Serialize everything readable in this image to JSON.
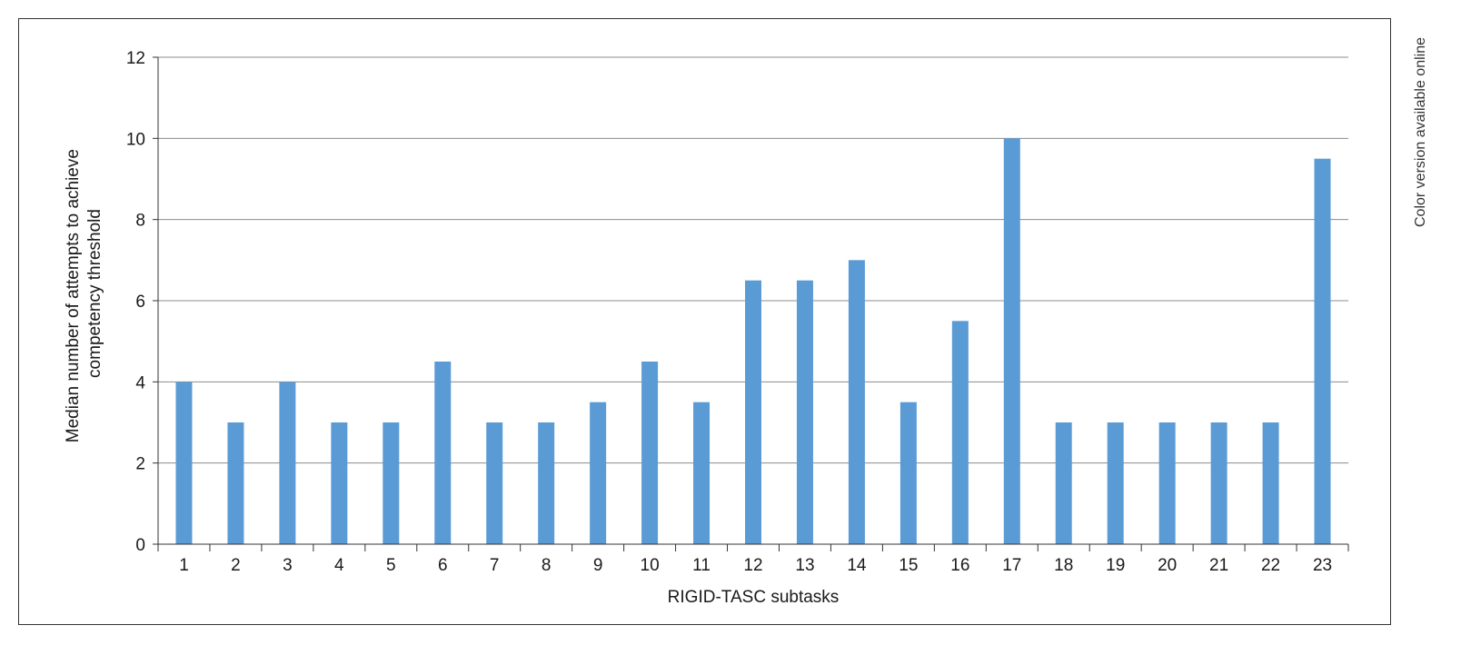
{
  "side_note": "Color version available online",
  "colors": {
    "bar": "#5b9bd5",
    "grid": "#8c8c8c",
    "axis": "#333333",
    "text": "#1a1a1a"
  },
  "chart_data": {
    "type": "bar",
    "title": "",
    "xlabel": "RIGID-TASC subtasks",
    "ylabel": [
      "Median number of attempts to achieve",
      "competency threshold"
    ],
    "ylim": [
      0,
      12
    ],
    "yticks": [
      "0",
      "2",
      "4",
      "6",
      "8",
      "10",
      "12"
    ],
    "grid": true,
    "legend": "none",
    "categories": [
      "1",
      "2",
      "3",
      "4",
      "5",
      "6",
      "7",
      "8",
      "9",
      "10",
      "11",
      "12",
      "13",
      "14",
      "15",
      "16",
      "17",
      "18",
      "19",
      "20",
      "21",
      "22",
      "23"
    ],
    "values": [
      4,
      3,
      4,
      3,
      3,
      4.5,
      3,
      3,
      3.5,
      4.5,
      3.5,
      6.5,
      6.5,
      7,
      3.5,
      5.5,
      10,
      3,
      3,
      3,
      3,
      3,
      9.5
    ]
  }
}
